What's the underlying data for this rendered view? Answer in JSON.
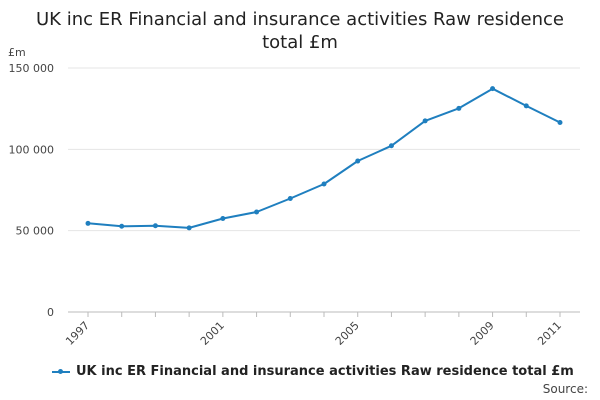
{
  "chart_data": {
    "type": "line",
    "title_lines": [
      "UK inc ER Financial and insurance activities Raw residence",
      "total £m"
    ],
    "ylabel": "£m",
    "xlabel": "",
    "x": [
      1997,
      1998,
      1999,
      2000,
      2001,
      2002,
      2003,
      2004,
      2005,
      2006,
      2007,
      2008,
      2009,
      2010,
      2011
    ],
    "x_tick_labels": [
      "1997",
      "2001",
      "2005",
      "2009",
      "2011"
    ],
    "y_ticks": [
      0,
      50000,
      100000,
      150000
    ],
    "y_tick_labels": [
      "0",
      "50 000",
      "100 000",
      "150 000"
    ],
    "ylim": [
      0,
      150000
    ],
    "grid": true,
    "series": [
      {
        "name": "UK inc ER Financial and insurance activities Raw residence total £m",
        "color": "#1f7fbf",
        "values": [
          54500,
          52700,
          53000,
          51700,
          57500,
          61500,
          69800,
          78700,
          92800,
          102200,
          117500,
          125200,
          137300,
          126700,
          116500
        ]
      }
    ],
    "legend": {
      "position": "bottom-left",
      "label": "UK inc ER Financial and insurance activities Raw residence total £m"
    },
    "source_label": "Source:"
  }
}
